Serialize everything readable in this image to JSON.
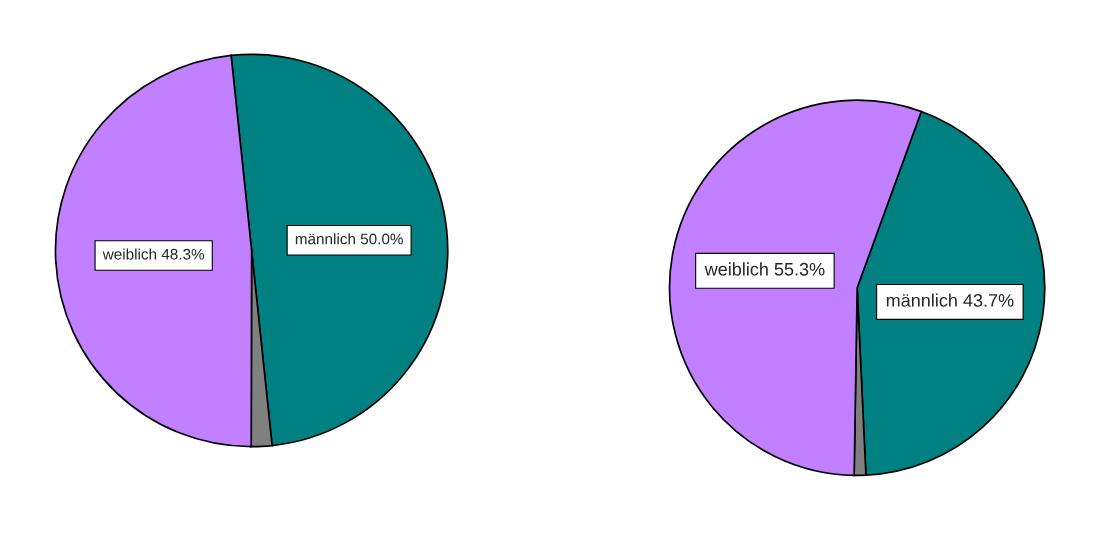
{
  "chart_data": [
    {
      "type": "pie",
      "categories": [
        "männlich",
        null,
        "weiblich"
      ],
      "values": [
        50.0,
        1.7,
        48.3
      ],
      "colors": [
        "#008080",
        "#808080",
        "#c080ff"
      ],
      "value_labels": [
        "50.0%",
        null,
        "48.3%"
      ]
    },
    {
      "type": "pie",
      "categories": [
        "männlich",
        null,
        "weiblich"
      ],
      "values": [
        43.7,
        1.0,
        55.3
      ],
      "colors": [
        "#008080",
        "#808080",
        "#c080ff"
      ],
      "value_labels": [
        "43.7%",
        null,
        "55.3%"
      ]
    }
  ]
}
